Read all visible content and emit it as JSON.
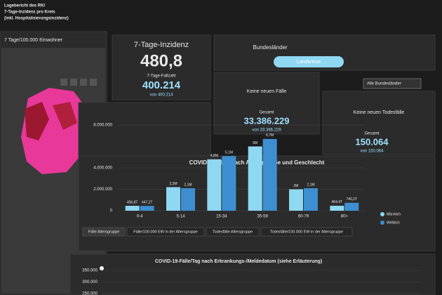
{
  "map_panel": {
    "title_lines": [
      "Lagebericht des RKI",
      "7-Tage-Inzidenz pro Kreis",
      "(inkl. Hospitalisierungsinzidenz)"
    ],
    "legend_title": "7 Tage/100.000 Einwohner"
  },
  "tabs": [
    "Bundesländer",
    "Landkreise"
  ],
  "dropdown": "Alle Bundesländer",
  "kpis": [
    {
      "title": "7-Tage-Inzidenz",
      "value": "480,8",
      "sub_title": "7-Tage-Fallzahl",
      "sub_value": "400.214",
      "sub_note": "von 400.214"
    },
    {
      "title": "Keine neuen Fälle",
      "label": "Gesamt",
      "value": "33.386.229",
      "note": "von 33.386.229"
    },
    {
      "title": "Keine neuen Todesfälle",
      "label": "Gesamt",
      "value": "150.064",
      "note": "von 150.064"
    }
  ],
  "chart_tabs": [
    "Fälle Altersgruppe",
    "Fälle/100.000 EW in der Altersgruppe",
    "Todesfälle Altersgruppe",
    "Todesfälle/100.000 EW in der Altersgruppe"
  ],
  "chart_data": [
    {
      "type": "bar",
      "title": "COVID-19-Fälle nach Altersgruppe und Geschlecht",
      "categories": [
        "0-4",
        "5-14",
        "15-34",
        "35-59",
        "60-79",
        "80+"
      ],
      "series": [
        {
          "name": "Männlich",
          "color": "#8fd8f2",
          "values": [
            456800,
            2200000,
            4800000,
            6000000,
            2000000,
            464400
          ],
          "value_labels": [
            "456,8T",
            "2,2M",
            "4,8M",
            "6M",
            "2M",
            "464,4T"
          ]
        },
        {
          "name": "Weiblich",
          "color": "#3d8fd1",
          "values": [
            447200,
            2100000,
            5100000,
            6700000,
            2100000,
            740200
          ],
          "value_labels": [
            "447,2T",
            "2,1M",
            "5,1M",
            "6,7M",
            "2,1M",
            "740,2T"
          ]
        }
      ],
      "ylim": [
        0,
        8000000
      ],
      "yticks": [
        {
          "value": 0,
          "label": "0"
        },
        {
          "value": 2000000,
          "label": "2.000.000"
        },
        {
          "value": 4000000,
          "label": "4.000.000"
        },
        {
          "value": 8000000,
          "label": "8.000.000"
        }
      ],
      "grid": true
    },
    {
      "type": "line",
      "title": "COVID-19-Fälle/Tag nach Erkrankungs-/Meldedatum (siehe Erläuterung)",
      "ylim": [
        250000,
        350000
      ],
      "yticks": [
        {
          "value": 250000,
          "label": "250.000"
        },
        {
          "value": 300000,
          "label": "300.000"
        },
        {
          "value": 350000,
          "label": "350.000"
        }
      ],
      "grid": true
    }
  ]
}
